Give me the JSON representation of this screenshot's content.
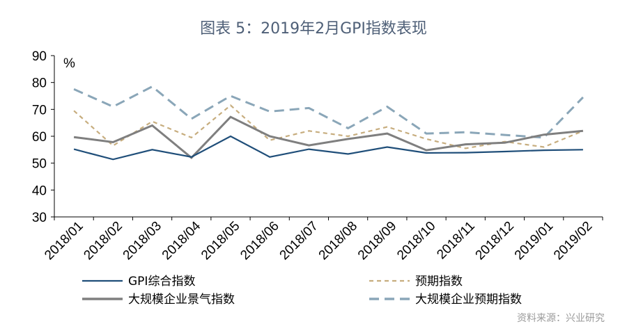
{
  "chart_data": {
    "type": "line",
    "title": "图表 5：2019年2月GPI指数表现",
    "ylabel": "%",
    "xlabel": "",
    "ylim": [
      30,
      90
    ],
    "yticks": [
      30,
      40,
      50,
      60,
      70,
      80,
      90
    ],
    "categories": [
      "2018/01",
      "2018/02",
      "2018/03",
      "2018/04",
      "2018/05",
      "2018/06",
      "2018/07",
      "2018/08",
      "2018/09",
      "2018/10",
      "2018/11",
      "2018/12",
      "2019/01",
      "2019/02"
    ],
    "grid": false,
    "legend_position": "bottom",
    "series": [
      {
        "name": "GPI综合指数",
        "color": "#1f4e79",
        "dash": "solid",
        "values": [
          55.2,
          51.4,
          55.0,
          52.3,
          60.0,
          52.3,
          55.2,
          53.4,
          56.0,
          53.8,
          53.9,
          54.3,
          54.8,
          55.0
        ]
      },
      {
        "name": "预期指数",
        "color": "#c7ad7e",
        "dash": "short",
        "values": [
          69.5,
          56.5,
          65.5,
          59.5,
          71.5,
          58.5,
          62.0,
          60.0,
          63.5,
          59.0,
          55.5,
          58.0,
          56.0,
          62.0
        ]
      },
      {
        "name": "大规模企业景气指数",
        "color": "#7f7f7f",
        "dash": "solid",
        "values": [
          59.7,
          57.8,
          64.0,
          52.0,
          67.2,
          60.0,
          56.6,
          59.0,
          61.0,
          54.8,
          57.0,
          57.6,
          60.6,
          62.0
        ]
      },
      {
        "name": "大规模企业预期指数",
        "color": "#8aa6b8",
        "dash": "long",
        "values": [
          77.5,
          71.0,
          78.5,
          66.5,
          75.0,
          69.2,
          70.5,
          63.0,
          71.0,
          61.0,
          61.5,
          60.5,
          59.5,
          74.5
        ]
      }
    ]
  },
  "source": "资料来源：兴业研究"
}
